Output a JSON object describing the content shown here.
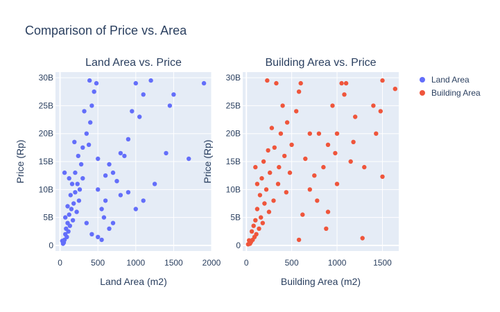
{
  "figure": {
    "title": "Comparison of Price vs. Area",
    "colors": {
      "plot_bg": "#e5ecf6",
      "grid": "#ffffff",
      "text": "#2a3f5f"
    }
  },
  "legend": {
    "placement": "right",
    "items": [
      {
        "label": "Land Area",
        "color": "#636efa"
      },
      {
        "label": "Building Area",
        "color": "#ef553b"
      }
    ]
  },
  "chart_data": [
    {
      "type": "scatter",
      "title": "Land Area vs. Price",
      "xlabel": "Land Area (m2)",
      "ylabel": "Price (Rp)",
      "xlim": [
        -60,
        2000
      ],
      "ylim": [
        -1000000000,
        31000000000
      ],
      "x_ticks": [
        0,
        500,
        1000,
        1500,
        2000
      ],
      "x_tick_labels": [
        "0",
        "500",
        "1000",
        "1500",
        "2000"
      ],
      "y_ticks": [
        0,
        5000000000,
        10000000000,
        15000000000,
        20000000000,
        25000000000,
        30000000000
      ],
      "y_tick_labels": [
        "0",
        "5B",
        "10B",
        "15B",
        "20B",
        "25B",
        "30B"
      ],
      "grid": true,
      "series": [
        {
          "name": "Land Area",
          "color": "#636efa",
          "points": [
            [
              1900,
              29000000000
            ],
            [
              1500,
              27000000000
            ],
            [
              1450,
              25000000000
            ],
            [
              1400,
              16500000000
            ],
            [
              1700,
              15500000000
            ],
            [
              1200,
              29500000000
            ],
            [
              1000,
              29000000000
            ],
            [
              1050,
              23000000000
            ],
            [
              1100,
              27000000000
            ],
            [
              950,
              24000000000
            ],
            [
              900,
              19000000000
            ],
            [
              850,
              16000000000
            ],
            [
              800,
              9000000000
            ],
            [
              750,
              11500000000
            ],
            [
              700,
              13000000000
            ],
            [
              650,
              14500000000
            ],
            [
              600,
              12500000000
            ],
            [
              600,
              8000000000
            ],
            [
              580,
              5000000000
            ],
            [
              550,
              6500000000
            ],
            [
              500,
              10000000000
            ],
            [
              500,
              15500000000
            ],
            [
              480,
              29000000000
            ],
            [
              450,
              27500000000
            ],
            [
              420,
              25000000000
            ],
            [
              400,
              22000000000
            ],
            [
              390,
              29500000000
            ],
            [
              380,
              18000000000
            ],
            [
              350,
              20000000000
            ],
            [
              320,
              24000000000
            ],
            [
              300,
              17500000000
            ],
            [
              300,
              12000000000
            ],
            [
              280,
              14500000000
            ],
            [
              260,
              10000000000
            ],
            [
              250,
              8000000000
            ],
            [
              240,
              16000000000
            ],
            [
              230,
              11000000000
            ],
            [
              220,
              6000000000
            ],
            [
              200,
              9500000000
            ],
            [
              200,
              13000000000
            ],
            [
              190,
              18500000000
            ],
            [
              180,
              7500000000
            ],
            [
              170,
              4500000000
            ],
            [
              160,
              11000000000
            ],
            [
              150,
              6500000000
            ],
            [
              140,
              9000000000
            ],
            [
              130,
              3500000000
            ],
            [
              120,
              5500000000
            ],
            [
              110,
              2500000000
            ],
            [
              100,
              4000000000
            ],
            [
              100,
              7000000000
            ],
            [
              90,
              1500000000
            ],
            [
              80,
              3000000000
            ],
            [
              70,
              2000000000
            ],
            [
              60,
              1000000000
            ],
            [
              50,
              500000000
            ],
            [
              40,
              300000000
            ],
            [
              30,
              800000000
            ],
            [
              60,
              13000000000
            ],
            [
              70,
              5000000000
            ],
            [
              120,
              12000000000
            ],
            [
              350,
              4000000000
            ],
            [
              420,
              2000000000
            ],
            [
              500,
              1500000000
            ],
            [
              700,
              4000000000
            ],
            [
              900,
              9500000000
            ],
            [
              1100,
              8000000000
            ],
            [
              1250,
              11000000000
            ],
            [
              1000,
              6500000000
            ],
            [
              800,
              16500000000
            ],
            [
              650,
              3000000000
            ],
            [
              550,
              1000000000
            ]
          ]
        }
      ]
    },
    {
      "type": "scatter",
      "title": "Building Area vs. Price",
      "xlabel": "Building Area (m2)",
      "ylabel": "Price (Rp)",
      "xlim": [
        -40,
        1680
      ],
      "ylim": [
        -1000000000,
        31000000000
      ],
      "x_ticks": [
        0,
        500,
        1000,
        1500
      ],
      "x_tick_labels": [
        "0",
        "500",
        "1000",
        "1500"
      ],
      "y_ticks": [
        0,
        5000000000,
        10000000000,
        15000000000,
        20000000000,
        25000000000,
        30000000000
      ],
      "y_tick_labels": [
        "0",
        "5B",
        "10B",
        "15B",
        "20B",
        "25B",
        "30B"
      ],
      "grid": true,
      "series": [
        {
          "name": "Building Area",
          "color": "#ef553b",
          "points": [
            [
              1640,
              28000000000
            ],
            [
              1500,
              29500000000
            ],
            [
              1480,
              24000000000
            ],
            [
              1500,
              12300000000
            ],
            [
              1400,
              25000000000
            ],
            [
              1430,
              20000000000
            ],
            [
              1300,
              14000000000
            ],
            [
              1280,
              1300000000
            ],
            [
              1200,
              23000000000
            ],
            [
              1180,
              18500000000
            ],
            [
              1100,
              29000000000
            ],
            [
              1080,
              27000000000
            ],
            [
              1050,
              29000000000
            ],
            [
              1000,
              20000000000
            ],
            [
              980,
              16500000000
            ],
            [
              950,
              25000000000
            ],
            [
              900,
              18000000000
            ],
            [
              850,
              14000000000
            ],
            [
              800,
              20000000000
            ],
            [
              780,
              8000000000
            ],
            [
              700,
              20000000000
            ],
            [
              650,
              15500000000
            ],
            [
              620,
              5500000000
            ],
            [
              600,
              29000000000
            ],
            [
              580,
              27500000000
            ],
            [
              550,
              24000000000
            ],
            [
              500,
              18000000000
            ],
            [
              480,
              13000000000
            ],
            [
              450,
              22000000000
            ],
            [
              440,
              9500000000
            ],
            [
              420,
              16000000000
            ],
            [
              400,
              25000000000
            ],
            [
              380,
              20000000000
            ],
            [
              360,
              14000000000
            ],
            [
              350,
              11000000000
            ],
            [
              330,
              29000000000
            ],
            [
              310,
              17500000000
            ],
            [
              300,
              8000000000
            ],
            [
              280,
              21000000000
            ],
            [
              260,
              13000000000
            ],
            [
              250,
              6000000000
            ],
            [
              240,
              17000000000
            ],
            [
              230,
              29500000000
            ],
            [
              220,
              10000000000
            ],
            [
              200,
              7500000000
            ],
            [
              190,
              15000000000
            ],
            [
              180,
              4000000000
            ],
            [
              170,
              12000000000
            ],
            [
              160,
              5000000000
            ],
            [
              150,
              9000000000
            ],
            [
              140,
              3000000000
            ],
            [
              120,
              6500000000
            ],
            [
              110,
              2000000000
            ],
            [
              100,
              4500000000
            ],
            [
              90,
              1500000000
            ],
            [
              80,
              3500000000
            ],
            [
              70,
              1000000000
            ],
            [
              60,
              2500000000
            ],
            [
              50,
              600000000
            ],
            [
              40,
              300000000
            ],
            [
              30,
              900000000
            ],
            [
              20,
              200000000
            ],
            [
              100,
              14000000000
            ],
            [
              120,
              11000000000
            ],
            [
              900,
              6000000000
            ],
            [
              700,
              10000000000
            ],
            [
              1000,
              11000000000
            ],
            [
              580,
              1000000000
            ],
            [
              880,
              3000000000
            ],
            [
              750,
              12500000000
            ],
            [
              1150,
              15000000000
            ]
          ]
        }
      ]
    }
  ]
}
